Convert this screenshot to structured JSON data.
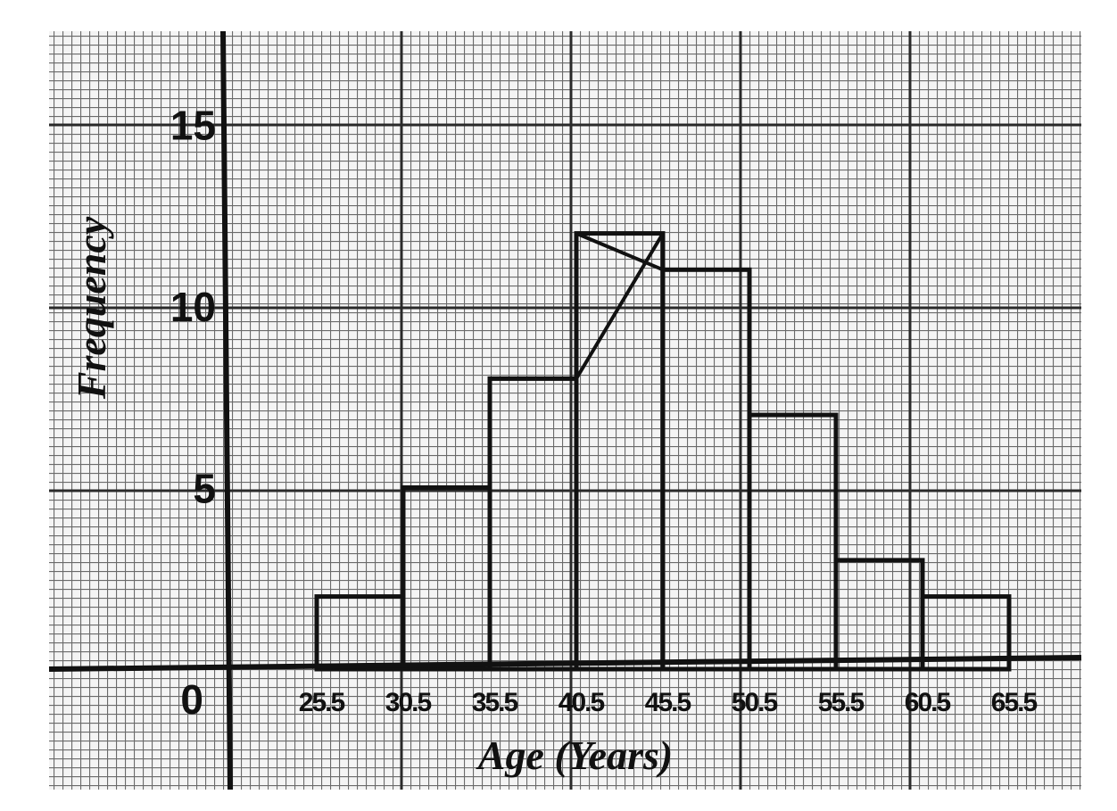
{
  "chart_data": {
    "type": "bar",
    "title": "",
    "xlabel": "Age (Years)",
    "ylabel": "Frequency",
    "y_ticks": [
      "0",
      "5",
      "10",
      "15"
    ],
    "bin_edges": [
      "25.5",
      "30.5",
      "35.5",
      "40.5",
      "45.5",
      "50.5",
      "55.5",
      "60.5",
      "65.5"
    ],
    "bin_edge_values": [
      25.5,
      30.5,
      35.5,
      40.5,
      45.5,
      50.5,
      55.5,
      60.5,
      65.5
    ],
    "values": [
      2,
      5,
      8,
      12,
      11,
      7,
      3,
      2
    ],
    "xlim": [
      20.5,
      70.5
    ],
    "ylim": [
      0,
      17.5
    ],
    "grid": true,
    "annotations": [
      "mode construction lines drawn on the highest bar"
    ]
  },
  "colors": {
    "paper": "#f4f4f4",
    "grid_minor": "#6a6a6a",
    "grid_major": "#2a2a2a",
    "ink": "#111111"
  }
}
